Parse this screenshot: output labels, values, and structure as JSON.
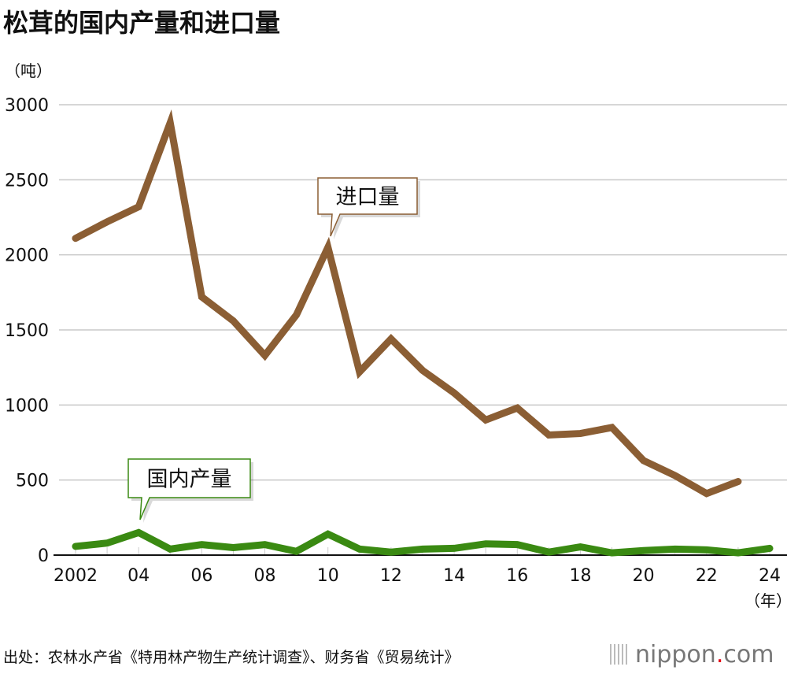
{
  "chart_data": {
    "type": "line",
    "title": "松茸的国内产量和进口量",
    "ylabel": "（吨）",
    "xlabel": "（年）",
    "ylim": [
      0,
      3000
    ],
    "yticks": [
      0,
      500,
      1000,
      1500,
      2000,
      2500,
      3000
    ],
    "grid": true,
    "x": [
      2002,
      2003,
      2004,
      2005,
      2006,
      2007,
      2008,
      2009,
      2010,
      2011,
      2012,
      2013,
      2014,
      2015,
      2016,
      2017,
      2018,
      2019,
      2020,
      2021,
      2022,
      2023,
      2024
    ],
    "xtick_values": [
      2002,
      2004,
      2006,
      2008,
      2010,
      2012,
      2014,
      2016,
      2018,
      2020,
      2022,
      2024
    ],
    "xtick_labels": [
      "2002",
      "04",
      "06",
      "08",
      "10",
      "12",
      "14",
      "16",
      "18",
      "20",
      "22",
      "24"
    ],
    "series": [
      {
        "name": "进口量",
        "color": "#8b5e34",
        "values": [
          2110,
          2220,
          2320,
          2880,
          1720,
          1560,
          1330,
          1600,
          2050,
          1220,
          1440,
          1230,
          1080,
          900,
          980,
          800,
          810,
          850,
          630,
          530,
          410,
          490,
          null
        ]
      },
      {
        "name": "国内产量",
        "color": "#3a8a12",
        "values": [
          58,
          80,
          150,
          40,
          70,
          50,
          70,
          25,
          140,
          40,
          20,
          40,
          45,
          75,
          70,
          20,
          55,
          15,
          30,
          40,
          35,
          15,
          45
        ]
      }
    ]
  },
  "source": "出处：农林水产省《特用林产物生产统计调查》、财务省《贸易统计》",
  "logo": {
    "name": "nippon",
    "dot": ".",
    "suffix": "com"
  }
}
